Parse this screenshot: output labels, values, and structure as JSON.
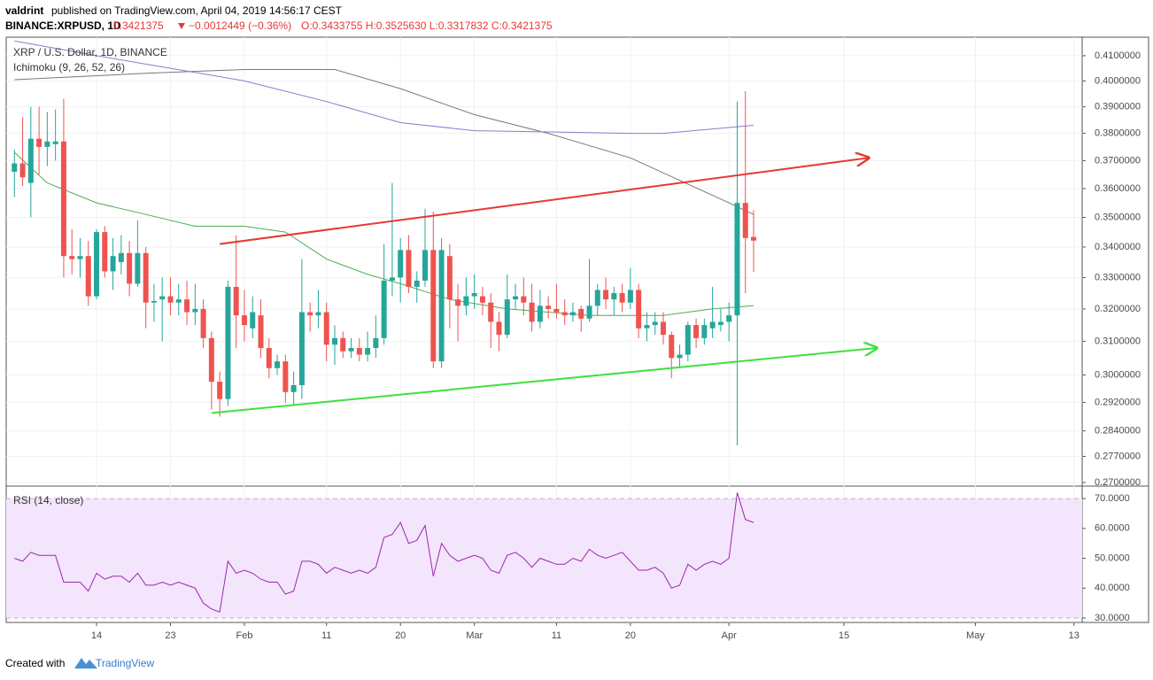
{
  "header": {
    "author": "valdrint",
    "published": "published on TradingView.com, April 04, 2019 14:56:17 CEST",
    "symbol": "BINANCE:XRPUSD, 1D",
    "last": "0.3421375",
    "change": "−0.0012449 (−0.36%)",
    "ohlc": "O:0.3433755 H:0.3525630 L:0.3317832 C:0.3421375"
  },
  "footer": {
    "created": "Created with",
    "brand": "TradingView"
  },
  "chart_data": [
    {
      "type": "candlestick",
      "title": "XRP / U.S. Dollar, 1D, BINANCE",
      "subtitle": "Ichimoku (9, 26, 52, 26)",
      "log": true,
      "up_color": "#26a69a",
      "down_color": "#ef5350",
      "x": [
        "2019-01-04",
        "2019-01-05",
        "2019-01-06",
        "2019-01-07",
        "2019-01-08",
        "2019-01-09",
        "2019-01-10",
        "2019-01-11",
        "2019-01-12",
        "2019-01-13",
        "2019-01-14",
        "2019-01-15",
        "2019-01-16",
        "2019-01-17",
        "2019-01-18",
        "2019-01-19",
        "2019-01-20",
        "2019-01-21",
        "2019-01-22",
        "2019-01-23",
        "2019-01-24",
        "2019-01-25",
        "2019-01-26",
        "2019-01-27",
        "2019-01-28",
        "2019-01-29",
        "2019-01-30",
        "2019-01-31",
        "2019-02-01",
        "2019-02-02",
        "2019-02-03",
        "2019-02-04",
        "2019-02-05",
        "2019-02-06",
        "2019-02-07",
        "2019-02-08",
        "2019-02-09",
        "2019-02-10",
        "2019-02-11",
        "2019-02-12",
        "2019-02-13",
        "2019-02-14",
        "2019-02-15",
        "2019-02-16",
        "2019-02-17",
        "2019-02-18",
        "2019-02-19",
        "2019-02-20",
        "2019-02-21",
        "2019-02-22",
        "2019-02-23",
        "2019-02-24",
        "2019-02-25",
        "2019-02-26",
        "2019-02-27",
        "2019-02-28",
        "2019-03-01",
        "2019-03-02",
        "2019-03-03",
        "2019-03-04",
        "2019-03-05",
        "2019-03-06",
        "2019-03-07",
        "2019-03-08",
        "2019-03-09",
        "2019-03-10",
        "2019-03-11",
        "2019-03-12",
        "2019-03-13",
        "2019-03-14",
        "2019-03-15",
        "2019-03-16",
        "2019-03-17",
        "2019-03-18",
        "2019-03-19",
        "2019-03-20",
        "2019-03-21",
        "2019-03-22",
        "2019-03-23",
        "2019-03-24",
        "2019-03-25",
        "2019-03-26",
        "2019-03-27",
        "2019-03-28",
        "2019-03-29",
        "2019-03-30",
        "2019-03-31",
        "2019-04-01",
        "2019-04-02",
        "2019-04-03",
        "2019-04-04"
      ],
      "open": [
        0.366,
        0.369,
        0.362,
        0.378,
        0.375,
        0.376,
        0.377,
        0.337,
        0.336,
        0.337,
        0.324,
        0.345,
        0.332,
        0.335,
        0.338,
        0.328,
        0.338,
        0.322,
        0.323,
        0.324,
        0.322,
        0.323,
        0.319,
        0.32,
        0.311,
        0.298,
        0.293,
        0.327,
        0.318,
        0.314,
        0.318,
        0.308,
        0.302,
        0.304,
        0.295,
        0.297,
        0.319,
        0.318,
        0.319,
        0.309,
        0.311,
        0.307,
        0.308,
        0.306,
        0.308,
        0.311,
        0.329,
        0.33,
        0.339,
        0.327,
        0.329,
        0.339,
        0.304,
        0.337,
        0.323,
        0.321,
        0.324,
        0.324,
        0.322,
        0.316,
        0.312,
        0.323,
        0.324,
        0.322,
        0.316,
        0.321,
        0.32,
        0.319,
        0.318,
        0.32,
        0.317,
        0.321,
        0.326,
        0.323,
        0.325,
        0.322,
        0.326,
        0.314,
        0.315,
        0.316,
        0.312,
        0.305,
        0.306,
        0.315,
        0.311,
        0.314,
        0.315,
        0.316,
        0.318,
        0.355,
        0.3433755
      ],
      "high": [
        0.374,
        0.386,
        0.39,
        0.39,
        0.388,
        0.389,
        0.393,
        0.346,
        0.343,
        0.342,
        0.346,
        0.347,
        0.343,
        0.344,
        0.342,
        0.349,
        0.34,
        0.328,
        0.33,
        0.33,
        0.328,
        0.329,
        0.328,
        0.323,
        0.313,
        0.301,
        0.329,
        0.344,
        0.326,
        0.324,
        0.323,
        0.311,
        0.306,
        0.306,
        0.301,
        0.336,
        0.322,
        0.326,
        0.322,
        0.315,
        0.313,
        0.311,
        0.311,
        0.313,
        0.318,
        0.341,
        0.362,
        0.343,
        0.344,
        0.332,
        0.353,
        0.352,
        0.343,
        0.341,
        0.328,
        0.33,
        0.331,
        0.327,
        0.325,
        0.319,
        0.331,
        0.328,
        0.33,
        0.328,
        0.326,
        0.324,
        0.328,
        0.323,
        0.322,
        0.321,
        0.336,
        0.328,
        0.33,
        0.327,
        0.328,
        0.333,
        0.328,
        0.319,
        0.319,
        0.319,
        0.313,
        0.309,
        0.316,
        0.317,
        0.317,
        0.327,
        0.32,
        0.322,
        0.392,
        0.396,
        0.352563
      ],
      "low": [
        0.357,
        0.361,
        0.35,
        0.365,
        0.368,
        0.37,
        0.33,
        0.331,
        0.33,
        0.321,
        0.323,
        0.33,
        0.326,
        0.331,
        0.324,
        0.327,
        0.314,
        0.316,
        0.31,
        0.318,
        0.318,
        0.315,
        0.315,
        0.308,
        0.29,
        0.288,
        0.291,
        0.308,
        0.31,
        0.311,
        0.305,
        0.299,
        0.3,
        0.292,
        0.291,
        0.293,
        0.313,
        0.314,
        0.304,
        0.303,
        0.305,
        0.305,
        0.304,
        0.304,
        0.305,
        0.309,
        0.324,
        0.322,
        0.325,
        0.322,
        0.327,
        0.302,
        0.302,
        0.314,
        0.31,
        0.318,
        0.32,
        0.318,
        0.308,
        0.307,
        0.311,
        0.32,
        0.318,
        0.313,
        0.314,
        0.317,
        0.317,
        0.315,
        0.316,
        0.313,
        0.316,
        0.318,
        0.32,
        0.318,
        0.319,
        0.32,
        0.311,
        0.31,
        0.312,
        0.309,
        0.299,
        0.302,
        0.304,
        0.308,
        0.309,
        0.311,
        0.313,
        0.31,
        0.28,
        0.325,
        0.3317832
      ],
      "close": [
        0.369,
        0.364,
        0.378,
        0.375,
        0.377,
        0.377,
        0.337,
        0.336,
        0.337,
        0.324,
        0.345,
        0.332,
        0.337,
        0.338,
        0.328,
        0.338,
        0.322,
        0.3225,
        0.324,
        0.322,
        0.323,
        0.319,
        0.32,
        0.311,
        0.298,
        0.293,
        0.327,
        0.318,
        0.315,
        0.319,
        0.308,
        0.302,
        0.304,
        0.295,
        0.297,
        0.319,
        0.318,
        0.319,
        0.309,
        0.311,
        0.307,
        0.308,
        0.306,
        0.308,
        0.311,
        0.329,
        0.33,
        0.339,
        0.327,
        0.329,
        0.339,
        0.304,
        0.339,
        0.323,
        0.321,
        0.324,
        0.325,
        0.322,
        0.316,
        0.312,
        0.323,
        0.324,
        0.322,
        0.316,
        0.321,
        0.32,
        0.319,
        0.318,
        0.319,
        0.317,
        0.321,
        0.326,
        0.323,
        0.325,
        0.322,
        0.326,
        0.314,
        0.315,
        0.316,
        0.312,
        0.305,
        0.306,
        0.315,
        0.311,
        0.315,
        0.316,
        0.316,
        0.318,
        0.355,
        0.343,
        0.3421375
      ],
      "lines": [
        {
          "color": "#4caf50",
          "x": [
            "2019-01-04",
            "2019-01-08",
            "2019-01-14",
            "2019-01-20",
            "2019-01-26",
            "2019-02-01",
            "2019-02-06",
            "2019-02-11",
            "2019-02-16",
            "2019-02-20",
            "2019-02-26",
            "2019-03-05",
            "2019-03-15",
            "2019-03-24",
            "2019-03-30",
            "2019-04-04"
          ],
          "values": [
            0.373,
            0.362,
            0.355,
            0.351,
            0.347,
            0.347,
            0.345,
            0.336,
            0.331,
            0.328,
            0.323,
            0.32,
            0.318,
            0.318,
            0.32,
            0.321
          ]
        },
        {
          "color": "#787878",
          "x": [
            "2019-01-04",
            "2019-01-20",
            "2019-02-01",
            "2019-02-12",
            "2019-02-20",
            "2019-03-01",
            "2019-03-10",
            "2019-03-20",
            "2019-04-01",
            "2019-04-04"
          ],
          "values": [
            0.4005,
            0.403,
            0.4045,
            0.4045,
            0.397,
            0.387,
            0.38,
            0.371,
            0.355,
            0.351
          ]
        },
        {
          "color": "#9575cd",
          "x": [
            "2019-01-04",
            "2019-01-14",
            "2019-01-23",
            "2019-02-01",
            "2019-02-11",
            "2019-02-20",
            "2019-03-01",
            "2019-03-20",
            "2019-03-24",
            "2019-04-04"
          ],
          "values": [
            0.416,
            0.41,
            0.405,
            0.4,
            0.392,
            0.384,
            0.381,
            0.38,
            0.38,
            0.383
          ]
        }
      ],
      "trendlines": [
        {
          "color": "#e53935",
          "x": [
            "2019-01-29",
            "2019-04-18"
          ],
          "y": [
            0.341,
            0.371
          ]
        },
        {
          "color": "#3ee03e",
          "x": [
            "2019-01-28",
            "2019-04-19"
          ],
          "y": [
            0.289,
            0.308
          ]
        }
      ],
      "xlim": [
        "2019-01-03",
        "2019-05-14"
      ],
      "ylim": [
        0.2693,
        0.4175
      ],
      "yticks": [
        {
          "value": 0.41,
          "label": "0.4100000"
        },
        {
          "value": 0.4,
          "label": "0.4000000"
        },
        {
          "value": 0.39,
          "label": "0.3900000"
        },
        {
          "value": 0.38,
          "label": "0.3800000"
        },
        {
          "value": 0.37,
          "label": "0.3700000"
        },
        {
          "value": 0.36,
          "label": "0.3600000"
        },
        {
          "value": 0.35,
          "label": "0.3500000"
        },
        {
          "value": 0.34,
          "label": "0.3400000"
        },
        {
          "value": 0.33,
          "label": "0.3300000"
        },
        {
          "value": 0.32,
          "label": "0.3200000"
        },
        {
          "value": 0.31,
          "label": "0.3100000"
        },
        {
          "value": 0.3,
          "label": "0.3000000"
        },
        {
          "value": 0.292,
          "label": "0.2920000"
        },
        {
          "value": 0.284,
          "label": "0.2840000"
        },
        {
          "value": 0.277,
          "label": "0.2770000"
        },
        {
          "value": 0.27,
          "label": "0.2700000"
        }
      ]
    },
    {
      "type": "line",
      "title": "RSI (14, close)",
      "color": "#9c27b0",
      "band": [
        30,
        70
      ],
      "band_color": "#f3e5fb",
      "values": [
        50,
        49,
        52,
        51,
        51,
        51,
        42,
        42,
        42,
        39,
        45,
        43,
        44,
        44,
        42,
        45,
        41,
        41,
        42,
        41,
        42,
        41,
        40,
        35,
        33,
        32,
        49,
        45,
        46,
        45,
        43,
        42,
        42,
        38,
        39,
        49,
        49,
        48,
        45,
        47,
        46,
        45,
        46,
        45,
        47,
        57,
        58,
        62,
        55,
        56,
        61,
        44,
        55,
        51,
        49,
        50,
        51,
        50,
        46,
        45,
        51,
        52,
        50,
        47,
        50,
        49,
        48,
        48,
        50,
        49,
        53,
        51,
        50,
        51,
        52,
        49,
        46,
        46,
        47,
        45,
        40,
        41,
        48,
        46,
        48,
        49,
        48,
        50,
        72,
        63,
        62
      ],
      "xlim": [
        "2019-01-03",
        "2019-05-14"
      ],
      "ylim": [
        28.5,
        73.9
      ],
      "yticks": [
        {
          "value": 70,
          "label": "70.0000"
        },
        {
          "value": 60,
          "label": "60.0000"
        },
        {
          "value": 50,
          "label": "50.0000"
        },
        {
          "value": 40,
          "label": "40.0000"
        },
        {
          "value": 30,
          "label": "30.0000"
        }
      ],
      "xticks": [
        {
          "value": "2019-01-14",
          "label": "14"
        },
        {
          "value": "2019-01-23",
          "label": "23"
        },
        {
          "value": "2019-02-01",
          "label": "Feb"
        },
        {
          "value": "2019-02-11",
          "label": "11"
        },
        {
          "value": "2019-02-20",
          "label": "20"
        },
        {
          "value": "2019-03-01",
          "label": "Mar"
        },
        {
          "value": "2019-03-11",
          "label": "11"
        },
        {
          "value": "2019-03-20",
          "label": "20"
        },
        {
          "value": "2019-04-01",
          "label": "Apr"
        },
        {
          "value": "2019-04-15",
          "label": "15"
        },
        {
          "value": "2019-05-01",
          "label": "May"
        },
        {
          "value": "2019-05-13",
          "label": "13"
        }
      ]
    }
  ]
}
